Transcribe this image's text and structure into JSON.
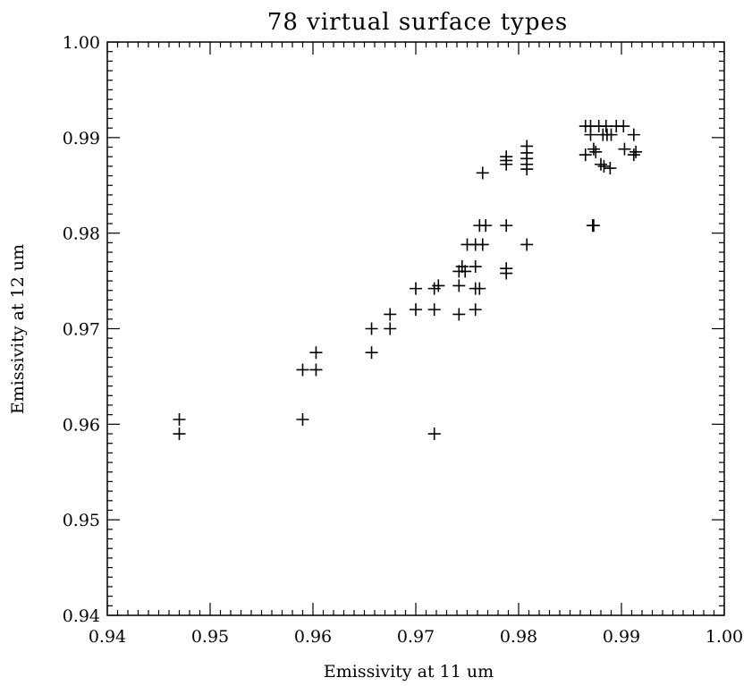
{
  "chart_data": {
    "type": "scatter",
    "title": "78 virtual surface types",
    "xlabel": "Emissivity at 11 um",
    "ylabel": "Emissivity at 12 um",
    "xlim": [
      0.94,
      1.0
    ],
    "ylim": [
      0.94,
      1.0
    ],
    "xticks": [
      "0.94",
      "0.95",
      "0.96",
      "0.97",
      "0.98",
      "0.99",
      "1.00"
    ],
    "yticks": [
      "0.94",
      "0.95",
      "0.96",
      "0.97",
      "0.98",
      "0.99",
      "1.00"
    ],
    "marker": "plus",
    "grid": false,
    "series": [
      {
        "color": "#000000",
        "points": [
          [
            0.947,
            0.9605
          ],
          [
            0.947,
            0.959
          ],
          [
            0.959,
            0.9605
          ],
          [
            0.959,
            0.9657
          ],
          [
            0.9603,
            0.9657
          ],
          [
            0.9603,
            0.9675
          ],
          [
            0.9657,
            0.9675
          ],
          [
            0.9657,
            0.97
          ],
          [
            0.9675,
            0.97
          ],
          [
            0.9675,
            0.9715
          ],
          [
            0.97,
            0.972
          ],
          [
            0.97,
            0.9742
          ],
          [
            0.9718,
            0.972
          ],
          [
            0.9718,
            0.9742
          ],
          [
            0.9722,
            0.9745
          ],
          [
            0.9718,
            0.959
          ],
          [
            0.9742,
            0.9715
          ],
          [
            0.9742,
            0.9745
          ],
          [
            0.9742,
            0.976
          ],
          [
            0.9745,
            0.9765
          ],
          [
            0.9748,
            0.976
          ],
          [
            0.975,
            0.9788
          ],
          [
            0.9758,
            0.972
          ],
          [
            0.9758,
            0.9742
          ],
          [
            0.9758,
            0.9765
          ],
          [
            0.9758,
            0.9788
          ],
          [
            0.9762,
            0.9742
          ],
          [
            0.9762,
            0.9808
          ],
          [
            0.9765,
            0.9788
          ],
          [
            0.9765,
            0.9863
          ],
          [
            0.9768,
            0.9808
          ],
          [
            0.9788,
            0.9758
          ],
          [
            0.9788,
            0.9763
          ],
          [
            0.9788,
            0.9808
          ],
          [
            0.9788,
            0.9872
          ],
          [
            0.9788,
            0.9876
          ],
          [
            0.9788,
            0.988
          ],
          [
            0.9808,
            0.9788
          ],
          [
            0.9808,
            0.9867
          ],
          [
            0.9808,
            0.9872
          ],
          [
            0.9808,
            0.9878
          ],
          [
            0.9808,
            0.9884
          ],
          [
            0.9808,
            0.9891
          ],
          [
            0.9872,
            0.9808
          ],
          [
            0.9873,
            0.9808
          ],
          [
            0.9865,
            0.9912
          ],
          [
            0.9865,
            0.9882
          ],
          [
            0.987,
            0.9912
          ],
          [
            0.987,
            0.9903
          ],
          [
            0.9873,
            0.9888
          ],
          [
            0.9875,
            0.9885
          ],
          [
            0.9878,
            0.9912
          ],
          [
            0.988,
            0.9872
          ],
          [
            0.9882,
            0.9903
          ],
          [
            0.9883,
            0.987
          ],
          [
            0.9885,
            0.9912
          ],
          [
            0.9886,
            0.9903
          ],
          [
            0.9889,
            0.9868
          ],
          [
            0.989,
            0.9903
          ],
          [
            0.9895,
            0.9912
          ],
          [
            0.9902,
            0.9912
          ],
          [
            0.9903,
            0.9888
          ],
          [
            0.9912,
            0.9903
          ],
          [
            0.9912,
            0.9882
          ],
          [
            0.9914,
            0.9885
          ]
        ]
      }
    ]
  }
}
